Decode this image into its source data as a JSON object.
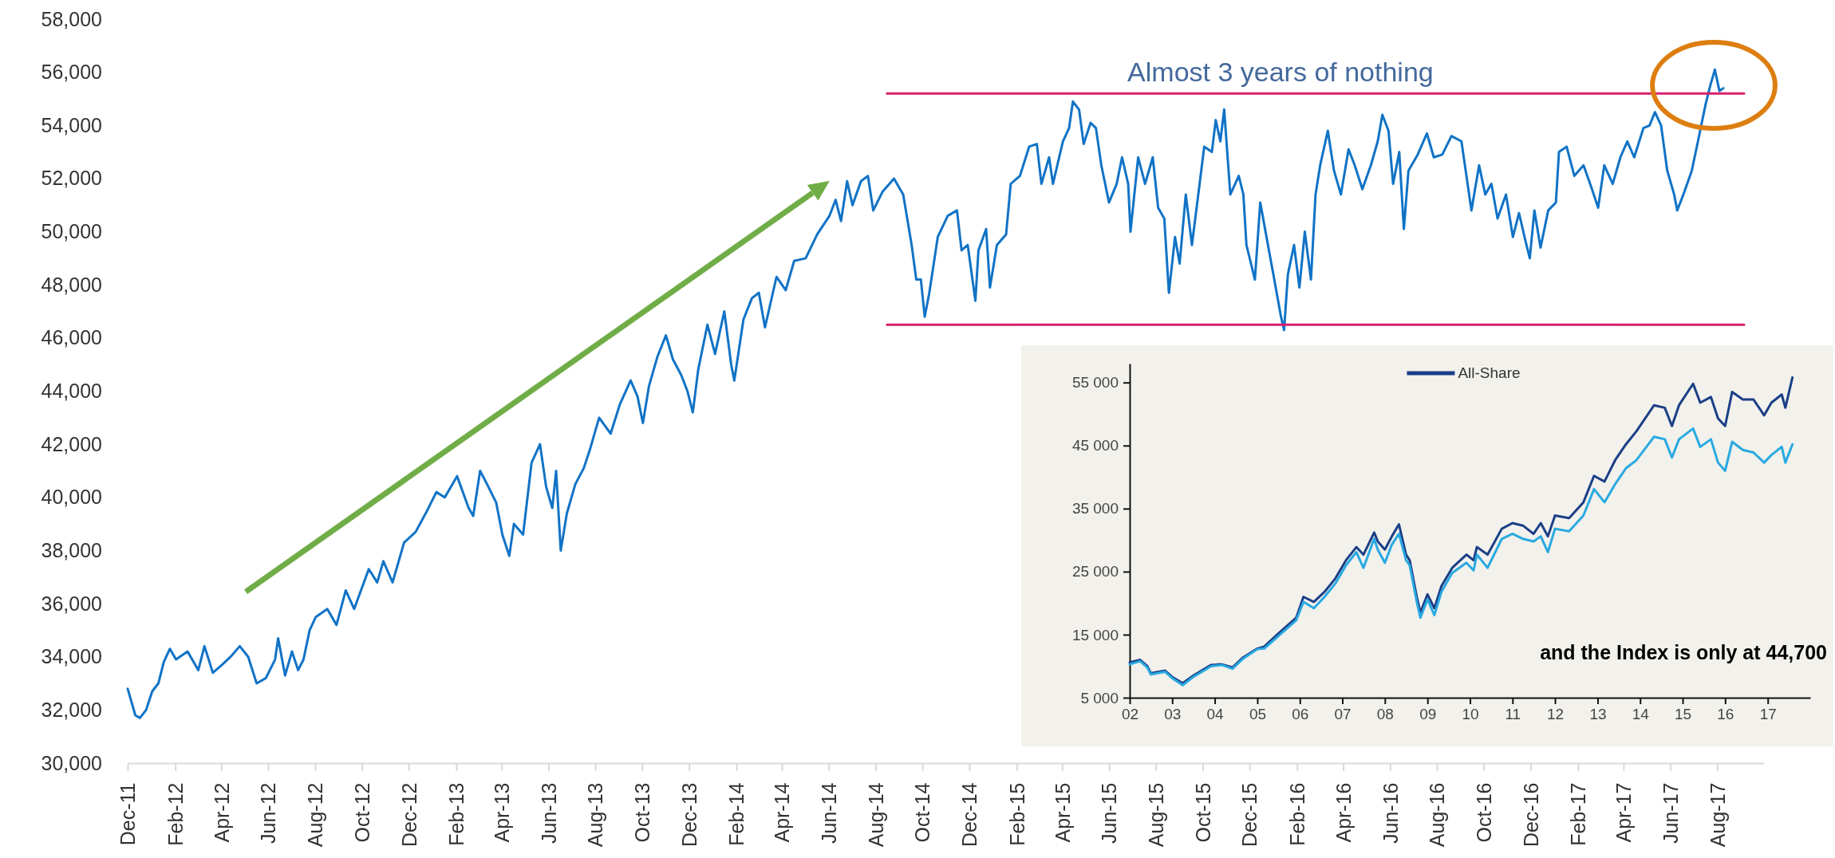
{
  "chart_data": [
    {
      "type": "line",
      "ylim": [
        30000,
        58000
      ],
      "yticks": [
        {
          "value": 30000,
          "label": "30,000"
        },
        {
          "value": 32000,
          "label": "32,000"
        },
        {
          "value": 34000,
          "label": "34,000"
        },
        {
          "value": 36000,
          "label": "36,000"
        },
        {
          "value": 38000,
          "label": "38,000"
        },
        {
          "value": 40000,
          "label": "40,000"
        },
        {
          "value": 42000,
          "label": "42,000"
        },
        {
          "value": 44000,
          "label": "44,000"
        },
        {
          "value": 46000,
          "label": "46,000"
        },
        {
          "value": 48000,
          "label": "48,000"
        },
        {
          "value": 50000,
          "label": "50,000"
        },
        {
          "value": 52000,
          "label": "52,000"
        },
        {
          "value": 54000,
          "label": "54,000"
        },
        {
          "value": 56000,
          "label": "56,000"
        },
        {
          "value": 58000,
          "label": "58,000"
        }
      ],
      "xlim": [
        "2011-12-01",
        "2017-10-01"
      ],
      "xticks": [
        {
          "value": "2011-12",
          "label": "Dec-11"
        },
        {
          "value": "2012-02",
          "label": "Feb-12"
        },
        {
          "value": "2012-04",
          "label": "Apr-12"
        },
        {
          "value": "2012-06",
          "label": "Jun-12"
        },
        {
          "value": "2012-08",
          "label": "Aug-12"
        },
        {
          "value": "2012-10",
          "label": "Oct-12"
        },
        {
          "value": "2012-12",
          "label": "Dec-12"
        },
        {
          "value": "2013-02",
          "label": "Feb-13"
        },
        {
          "value": "2013-04",
          "label": "Apr-13"
        },
        {
          "value": "2013-06",
          "label": "Jun-13"
        },
        {
          "value": "2013-08",
          "label": "Aug-13"
        },
        {
          "value": "2013-10",
          "label": "Oct-13"
        },
        {
          "value": "2013-12",
          "label": "Dec-13"
        },
        {
          "value": "2014-02",
          "label": "Feb-14"
        },
        {
          "value": "2014-04",
          "label": "Apr-14"
        },
        {
          "value": "2014-06",
          "label": "Jun-14"
        },
        {
          "value": "2014-08",
          "label": "Aug-14"
        },
        {
          "value": "2014-10",
          "label": "Oct-14"
        },
        {
          "value": "2014-12",
          "label": "Dec-14"
        },
        {
          "value": "2015-02",
          "label": "Feb-15"
        },
        {
          "value": "2015-04",
          "label": "Apr-15"
        },
        {
          "value": "2015-06",
          "label": "Jun-15"
        },
        {
          "value": "2015-08",
          "label": "Aug-15"
        },
        {
          "value": "2015-10",
          "label": "Oct-15"
        },
        {
          "value": "2015-12",
          "label": "Dec-15"
        },
        {
          "value": "2016-02",
          "label": "Feb-16"
        },
        {
          "value": "2016-04",
          "label": "Apr-16"
        },
        {
          "value": "2016-06",
          "label": "Jun-16"
        },
        {
          "value": "2016-08",
          "label": "Aug-16"
        },
        {
          "value": "2016-10",
          "label": "Oct-16"
        },
        {
          "value": "2016-12",
          "label": "Dec-16"
        },
        {
          "value": "2017-02",
          "label": "Feb-17"
        },
        {
          "value": "2017-04",
          "label": "Apr-17"
        },
        {
          "value": "2017-06",
          "label": "Jun-17"
        },
        {
          "value": "2017-08",
          "label": "Aug-17"
        }
      ],
      "annotations": [
        "Almost 3 years of nothing"
      ],
      "series": [
        {
          "color": "#1173c6",
          "x": [
            "2011-12-01",
            "2011-12-11",
            "2011-12-17",
            "2011-12-25",
            "2012-01-02",
            "2012-01-10",
            "2012-01-17",
            "2012-01-25",
            "2012-02-02",
            "2012-02-17",
            "2012-03-02",
            "2012-03-10",
            "2012-03-21",
            "2012-04-02",
            "2012-04-13",
            "2012-04-25",
            "2012-05-06",
            "2012-05-17",
            "2012-05-29",
            "2012-06-10",
            "2012-06-14",
            "2012-06-23",
            "2012-07-02",
            "2012-07-10",
            "2012-07-17",
            "2012-07-25",
            "2012-08-02",
            "2012-08-17",
            "2012-08-29",
            "2012-09-10",
            "2012-09-21",
            "2012-10-10",
            "2012-10-21",
            "2012-10-29",
            "2012-11-10",
            "2012-11-25",
            "2012-12-10",
            "2012-12-25",
            "2013-01-06",
            "2013-01-17",
            "2013-02-02",
            "2013-02-17",
            "2013-02-23",
            "2013-03-04",
            "2013-03-13",
            "2013-03-25",
            "2013-04-02",
            "2013-04-11",
            "2013-04-17",
            "2013-04-29",
            "2013-05-10",
            "2013-05-21",
            "2013-05-29",
            "2013-06-06",
            "2013-06-11",
            "2013-06-17",
            "2013-06-25",
            "2013-07-06",
            "2013-07-17",
            "2013-07-25",
            "2013-08-06",
            "2013-08-21",
            "2013-09-02",
            "2013-09-16",
            "2013-09-25",
            "2013-10-02",
            "2013-10-10",
            "2013-10-21",
            "2013-11-01",
            "2013-11-10",
            "2013-11-21",
            "2013-11-29",
            "2013-12-06",
            "2013-12-13",
            "2013-12-25",
            "2014-01-04",
            "2014-01-16",
            "2014-01-25",
            "2014-01-29",
            "2014-02-10",
            "2014-02-21",
            "2014-03-02",
            "2014-03-10",
            "2014-03-25",
            "2014-04-06",
            "2014-04-17",
            "2014-05-02",
            "2014-05-17",
            "2014-06-02",
            "2014-06-10",
            "2014-06-17",
            "2014-06-25",
            "2014-07-02",
            "2014-07-13",
            "2014-07-22",
            "2014-07-29",
            "2014-08-10",
            "2014-08-25",
            "2014-09-06",
            "2014-09-17",
            "2014-09-23",
            "2014-09-29",
            "2014-10-04",
            "2014-10-10",
            "2014-10-21",
            "2014-11-03",
            "2014-11-15",
            "2014-11-21",
            "2014-11-29",
            "2014-12-09",
            "2014-12-13",
            "2014-12-23",
            "2014-12-28",
            "2015-01-06",
            "2015-01-18",
            "2015-01-24",
            "2015-02-05",
            "2015-02-17",
            "2015-02-27",
            "2015-03-05",
            "2015-03-15",
            "2015-03-20",
            "2015-04-02",
            "2015-04-10",
            "2015-04-15",
            "2015-04-23",
            "2015-04-29",
            "2015-05-08",
            "2015-05-15",
            "2015-05-22",
            "2015-06-01",
            "2015-06-11",
            "2015-06-18",
            "2015-06-26",
            "2015-06-29",
            "2015-07-09",
            "2015-07-18",
            "2015-07-28",
            "2015-08-04",
            "2015-08-12",
            "2015-08-18",
            "2015-08-26",
            "2015-09-01",
            "2015-09-09",
            "2015-09-17",
            "2015-09-27",
            "2015-10-03",
            "2015-10-13",
            "2015-10-18",
            "2015-10-24",
            "2015-10-29",
            "2015-11-06",
            "2015-11-17",
            "2015-11-23",
            "2015-11-27",
            "2015-12-08",
            "2015-12-15",
            "2015-12-25",
            "2016-01-01",
            "2016-01-11",
            "2016-01-15",
            "2016-01-20",
            "2016-01-28",
            "2016-02-04",
            "2016-02-11",
            "2016-02-19",
            "2016-02-25",
            "2016-03-02",
            "2016-03-12",
            "2016-03-20",
            "2016-03-29",
            "2016-04-08",
            "2016-04-16",
            "2016-04-26",
            "2016-05-07",
            "2016-05-16",
            "2016-05-22",
            "2016-05-30",
            "2016-06-05",
            "2016-06-13",
            "2016-06-19",
            "2016-06-25",
            "2016-07-07",
            "2016-07-19",
            "2016-07-28",
            "2016-08-08",
            "2016-08-20",
            "2016-09-02",
            "2016-09-10",
            "2016-09-15",
            "2016-09-25",
            "2016-10-03",
            "2016-10-11",
            "2016-10-19",
            "2016-10-30",
            "2016-11-08",
            "2016-11-16",
            "2016-11-24",
            "2016-11-30",
            "2016-12-06",
            "2016-12-14",
            "2016-12-24",
            "2017-01-03",
            "2017-01-07",
            "2017-01-17",
            "2017-01-27",
            "2017-02-08",
            "2017-02-19",
            "2017-02-27",
            "2017-03-07",
            "2017-03-18",
            "2017-03-28",
            "2017-04-06",
            "2017-04-15",
            "2017-04-27",
            "2017-05-05",
            "2017-05-12",
            "2017-05-20",
            "2017-05-28",
            "2017-06-06",
            "2017-06-10",
            "2017-06-18",
            "2017-06-29",
            "2017-07-07",
            "2017-07-17",
            "2017-07-23",
            "2017-07-29",
            "2017-08-04",
            "2017-08-09"
          ],
          "values": [
            32800,
            31800,
            31700,
            32000,
            32700,
            33000,
            33800,
            34300,
            33900,
            34200,
            33500,
            34400,
            33400,
            33700,
            34000,
            34400,
            34000,
            33000,
            33200,
            33900,
            34700,
            33300,
            34200,
            33500,
            33900,
            35000,
            35500,
            35800,
            35200,
            36500,
            35800,
            37300,
            36800,
            37600,
            36800,
            38300,
            38700,
            39500,
            40200,
            40000,
            40800,
            39600,
            39300,
            41000,
            40500,
            39800,
            38600,
            37800,
            39000,
            38600,
            41300,
            42000,
            40400,
            39600,
            41000,
            38000,
            39400,
            40500,
            41100,
            41800,
            43000,
            42400,
            43500,
            44400,
            43800,
            42800,
            44200,
            45300,
            46100,
            45200,
            44600,
            44000,
            43200,
            44800,
            46500,
            45400,
            47000,
            45000,
            44400,
            46700,
            47500,
            47700,
            46400,
            48300,
            47800,
            48900,
            49000,
            49900,
            50600,
            51200,
            50400,
            51900,
            51000,
            51900,
            52100,
            50800,
            51500,
            52000,
            51400,
            49500,
            48200,
            48200,
            46800,
            47700,
            49800,
            50600,
            50800,
            49300,
            49500,
            47400,
            49300,
            50100,
            47900,
            49500,
            49900,
            51800,
            52100,
            53200,
            53300,
            51800,
            52800,
            51800,
            53400,
            53900,
            54900,
            54600,
            53300,
            54100,
            53900,
            52500,
            51100,
            51800,
            52800,
            51800,
            50000,
            52800,
            51800,
            52800,
            50900,
            50500,
            47700,
            49800,
            48800,
            51400,
            49500,
            51800,
            53200,
            53000,
            54200,
            53400,
            54600,
            51400,
            52100,
            51400,
            49500,
            48200,
            51100,
            49500,
            48400,
            46800,
            46300,
            48400,
            49500,
            47900,
            50000,
            48200,
            51400,
            52500,
            53800,
            52300,
            51400,
            53100,
            52500,
            51600,
            52500,
            53400,
            54400,
            53800,
            51800,
            53000,
            50100,
            52300,
            52900,
            53700,
            52800,
            52900,
            53600,
            53400,
            51800,
            50800,
            52500,
            51400,
            51800,
            50500,
            51400,
            49800,
            50700,
            49700,
            49000,
            50800,
            49400,
            50800,
            51100,
            53000,
            53200,
            52100,
            52500,
            51600,
            50900,
            52500,
            51800,
            52800,
            53400,
            52800,
            53900,
            54000,
            54500,
            54000,
            52300,
            51400,
            50800,
            51400,
            52300,
            53400,
            54800,
            55500,
            56100,
            55300,
            55400
          ]
        },
        {
          "type": "line",
          "color": "#d8206e",
          "x": [
            "2014-08-16",
            "2017-09-05"
          ],
          "values": [
            55200,
            55200
          ]
        },
        {
          "type": "line",
          "color": "#d8206e",
          "x": [
            "2014-08-16",
            "2017-09-05"
          ],
          "values": [
            46500,
            46500
          ]
        }
      ]
    },
    {
      "type": "line",
      "legend": "top",
      "ylim": [
        5000,
        58000
      ],
      "yticks": [
        {
          "value": 5000,
          "label": "5 000"
        },
        {
          "value": 15000,
          "label": "15 000"
        },
        {
          "value": 25000,
          "label": "25 000"
        },
        {
          "value": 35000,
          "label": "35 000"
        },
        {
          "value": 45000,
          "label": "45 000"
        },
        {
          "value": 55000,
          "label": "55 000"
        }
      ],
      "xlim": [
        "2002-01",
        "2018-01"
      ],
      "xticks": [
        {
          "value": "2002",
          "label": "02"
        },
        {
          "value": "2003",
          "label": "03"
        },
        {
          "value": "2004",
          "label": "04"
        },
        {
          "value": "2005",
          "label": "05"
        },
        {
          "value": "2006",
          "label": "06"
        },
        {
          "value": "2007",
          "label": "07"
        },
        {
          "value": "2008",
          "label": "08"
        },
        {
          "value": "2009",
          "label": "09"
        },
        {
          "value": "2010",
          "label": "10"
        },
        {
          "value": "2011",
          "label": "11"
        },
        {
          "value": "2012",
          "label": "12"
        },
        {
          "value": "2013",
          "label": "13"
        },
        {
          "value": "2014",
          "label": "14"
        },
        {
          "value": "2015",
          "label": "15"
        },
        {
          "value": "2016",
          "label": "16"
        },
        {
          "value": "2017",
          "label": "17"
        }
      ],
      "annotations": [
        "and the Index is only at 44,700"
      ],
      "x": [
        "2002-01",
        "2002-04",
        "2002-06",
        "2002-07",
        "2002-11",
        "2003-01",
        "2003-04",
        "2003-07",
        "2003-12",
        "2004-03",
        "2004-06",
        "2004-09",
        "2005-01",
        "2005-03",
        "2005-07",
        "2005-12",
        "2006-02",
        "2006-05",
        "2006-08",
        "2006-11",
        "2007-02",
        "2007-05",
        "2007-07",
        "2007-10",
        "2007-11",
        "2008-01",
        "2008-03",
        "2008-05",
        "2008-07",
        "2008-08",
        "2008-10",
        "2008-11",
        "2009-01",
        "2009-03",
        "2009-05",
        "2009-08",
        "2009-12",
        "2010-02",
        "2010-03",
        "2010-06",
        "2010-10",
        "2011-01",
        "2011-04",
        "2011-07",
        "2011-09",
        "2011-11",
        "2012-01",
        "2012-05",
        "2012-09",
        "2012-12",
        "2013-03",
        "2013-06",
        "2013-09",
        "2013-12",
        "2014-05",
        "2014-08",
        "2014-10",
        "2014-12",
        "2015-04",
        "2015-06",
        "2015-09",
        "2015-11",
        "2016-01",
        "2016-03",
        "2016-06",
        "2016-09",
        "2016-12",
        "2017-02",
        "2017-05",
        "2017-06",
        "2017-08"
      ],
      "series": [
        {
          "name": "All-Share",
          "color": "#1b3f86",
          "values": [
            10600,
            11000,
            10000,
            8900,
            9300,
            8300,
            7300,
            8500,
            10200,
            10300,
            9800,
            11400,
            12800,
            13100,
            15200,
            17700,
            21000,
            20200,
            21800,
            23900,
            26800,
            28900,
            27700,
            31200,
            29800,
            28500,
            30600,
            32500,
            27700,
            26800,
            21000,
            18500,
            21400,
            19200,
            22700,
            25600,
            27700,
            26800,
            28900,
            27700,
            31800,
            32700,
            32300,
            31000,
            32700,
            30600,
            33900,
            33500,
            36000,
            40200,
            39300,
            42700,
            45200,
            47300,
            51400,
            51000,
            48100,
            51400,
            54800,
            51800,
            52700,
            49300,
            48100,
            53500,
            52300,
            52300,
            49800,
            51800,
            53100,
            51000,
            55800
          ]
        },
        {
          "color": "#29a9e1",
          "values": [
            10300,
            10800,
            9800,
            8700,
            9100,
            8100,
            7000,
            8300,
            10000,
            10200,
            9600,
            11200,
            12700,
            12800,
            14800,
            17300,
            20200,
            19200,
            21000,
            23100,
            26000,
            28100,
            25600,
            30200,
            28500,
            26400,
            29300,
            31000,
            26800,
            26000,
            20200,
            17700,
            20600,
            18100,
            21800,
            24800,
            26400,
            25200,
            27700,
            25600,
            30200,
            31000,
            30200,
            29800,
            30600,
            28100,
            31800,
            31400,
            33900,
            38100,
            36000,
            38900,
            41400,
            42700,
            46400,
            46000,
            43100,
            46000,
            47700,
            44800,
            46000,
            42300,
            41000,
            45600,
            44300,
            43900,
            42300,
            43500,
            44800,
            42300,
            45200
          ]
        }
      ]
    }
  ]
}
